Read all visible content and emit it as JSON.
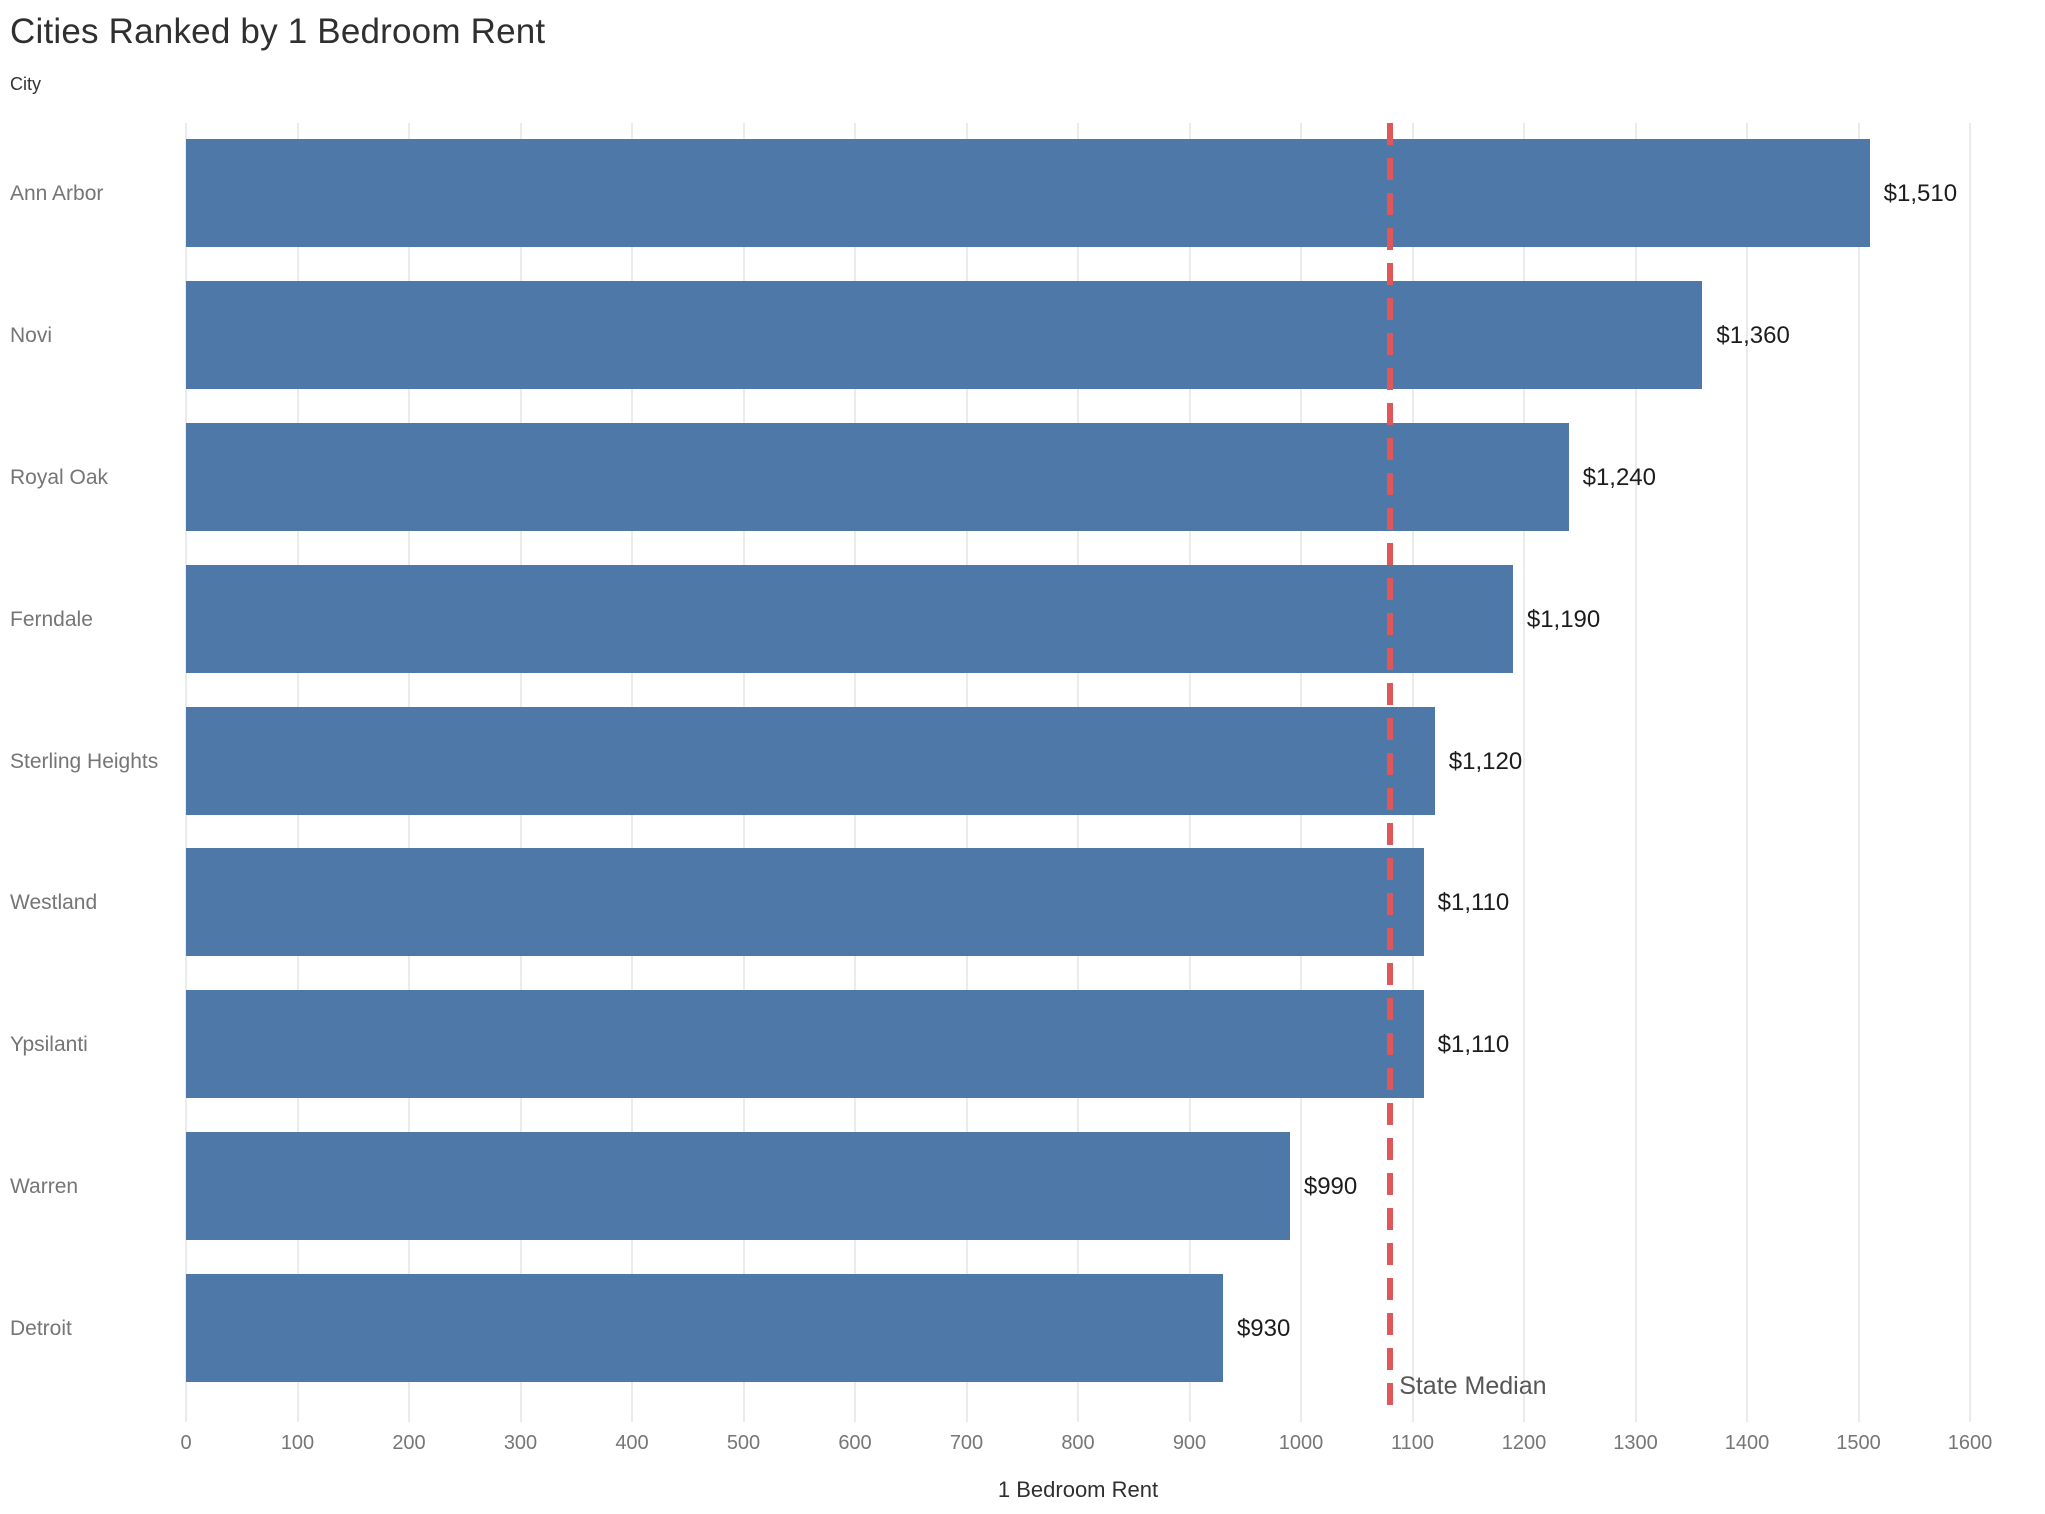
{
  "title": "Cities Ranked by 1 Bedroom Rent",
  "row_axis_title": "City",
  "colors": {
    "bar": "#4d78a8",
    "reference_line": "#e05759",
    "gridline": "#ebebeb",
    "tick_label": "#767676",
    "category_label": "#757575",
    "value_label": "#1c1c1c",
    "title": "#2f2f2f",
    "annotation": "#565656"
  },
  "chart_data": {
    "type": "bar",
    "orientation": "horizontal",
    "title": "Cities Ranked by 1 Bedroom Rent",
    "categories": [
      "Ann Arbor",
      "Novi",
      "Royal Oak",
      "Ferndale",
      "Sterling Heights",
      "Westland",
      "Ypsilanti",
      "Warren",
      "Detroit"
    ],
    "values": [
      1510,
      1360,
      1240,
      1190,
      1120,
      1110,
      1110,
      990,
      930
    ],
    "value_labels": [
      "$1,510",
      "$1,360",
      "$1,240",
      "$1,190",
      "$1,120",
      "$1,110",
      "$1,110",
      "$990",
      "$930"
    ],
    "xlabel": "1 Bedroom Rent",
    "ylabel": "City",
    "xlim": [
      0,
      1600
    ],
    "xtick_labels": [
      "0",
      "100",
      "200",
      "300",
      "400",
      "500",
      "600",
      "700",
      "800",
      "900",
      "1000",
      "1100",
      "1200",
      "1300",
      "1400",
      "1500",
      "1600"
    ],
    "grid": "vertical",
    "legend": "none",
    "reference_line": {
      "value": 1080,
      "label": "State Median",
      "style": "dashed"
    }
  }
}
